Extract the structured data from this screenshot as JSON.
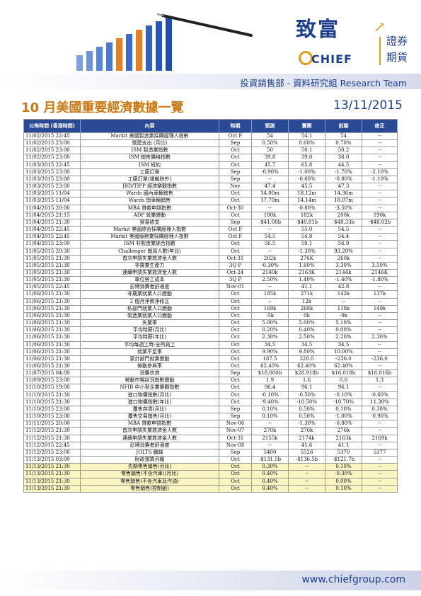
{
  "header": {
    "logo_text": "致富",
    "logo_brand": "CHIEF",
    "logo_line1": "證券",
    "logo_line2": "期貨",
    "department": "投資銷售部 - 資料研究組 Research Team",
    "title": "10 月美國重要經濟數據一覽",
    "date": "13/11/2015"
  },
  "table": {
    "columns": [
      "公佈時間 (香港時間)",
      "內容",
      "時期",
      "預測",
      "實際",
      "前期",
      "修正"
    ],
    "rows": [
      [
        "11/02/2015 22:45",
        "Markit 美國製造業採購經理人指數",
        "Oct F",
        "54",
        "54.1",
        "54",
        "--"
      ],
      [
        "11/02/2015 23:00",
        "營建支出 (月比)",
        "Sep",
        "0.50%",
        "0.60%",
        "0.70%",
        "--"
      ],
      [
        "11/02/2015 23:00",
        "ISM 製造業指數",
        "Oct",
        "50",
        "50.1",
        "50.2",
        "--"
      ],
      [
        "11/02/2015 23:00",
        "ISM 銷售價格指數",
        "Oct",
        "39.8",
        "39.0",
        "38.0",
        "--"
      ],
      [
        "11/03/2015 22:45",
        "ISM 紐約",
        "Oct",
        "45.7",
        "65.8",
        "44.5",
        "--"
      ],
      [
        "11/03/2015 23:00",
        "工廠訂單",
        "Sep",
        "-0.90%",
        "-1.00%",
        "-1.70%",
        "-2.10%"
      ],
      [
        "11/03/2015 23:00",
        "工廠訂單(運輸除外)",
        "Sep",
        "--",
        "-0.60%",
        "-0.80%",
        "-1.10%"
      ],
      [
        "11/03/2015 23:00",
        "IBD/TIPP 經濟樂觀指數",
        "Nov",
        "47.4",
        "45.5",
        "47.3",
        "--"
      ],
      [
        "11/03/2015 11/04",
        "Wards 國內車輛銷售",
        "Oct",
        "14.00m",
        "18.12m",
        "14.36m",
        "--"
      ],
      [
        "11/03/2015 11/04",
        "Wards 總車輛銷售",
        "Oct",
        "17.70m",
        "14.14m",
        "18.07m",
        "--"
      ],
      [
        "11/04/2015 20:00",
        "MBA 貸款申請指數",
        "Oct-30",
        "--",
        "-0.80%",
        "-3.50%",
        "--"
      ],
      [
        "11/04/2015 21:15",
        "ADP 就業變動",
        "Oct",
        "180k",
        "182k",
        "200k",
        "190k"
      ],
      [
        "11/04/2015 21:30",
        "貿易收支",
        "Sep",
        "-$41.00b",
        "-$40.81b",
        "-$48.33b",
        "-$48.02b"
      ],
      [
        "11/04/2015 22:45",
        "Markit 美國綜合採購經理人指數",
        "Oct F",
        "--",
        "55.0",
        "54.5",
        "--"
      ],
      [
        "11/04/2015 22:45",
        "Markit 美國服務業採購經理人指數",
        "Oct F",
        "54.5",
        "54.8",
        "54.4",
        "--"
      ],
      [
        "11/04/2015 23:00",
        "ISM 非製造業綜合指數",
        "Oct",
        "56.5",
        "59.1",
        "56.9",
        "--"
      ],
      [
        "11/05/2015 20:30",
        "Challenger 裁員人數(年比)",
        "Oct",
        "--",
        "-1.30%",
        "93.20%",
        "--"
      ],
      [
        "11/05/2015 21:30",
        "首次申請失業救濟金人數",
        "Oct-31",
        "262k",
        "276K",
        "260k",
        "--"
      ],
      [
        "11/05/2015 21:30",
        "非農業生產力",
        "3Q P",
        "-0.30%",
        "1.60%",
        "3.30%",
        "3.50%"
      ],
      [
        "11/05/2015 21:30",
        "連續申請失業救濟金人數",
        "Oct-24",
        "2140k",
        "2163K",
        "2144k",
        "2146K"
      ],
      [
        "11/05/2015 21:30",
        "單位勞工成本",
        "3Q P",
        "2.50%",
        "1.40%",
        "-1.40%",
        "-1.80%"
      ],
      [
        "11/05/2015 22:45",
        "彭博消費者舒適度",
        "Nov-01",
        "--",
        "41.1",
        "42.8",
        "--"
      ],
      [
        "11/06/2015 21:30",
        "非農業就業人口變動",
        "Oct",
        "185k",
        "271k",
        "142k",
        "137k"
      ],
      [
        "11/06/2015 21:30",
        "2 個月淨資淨修正",
        "Oct",
        "--",
        "12k",
        "--",
        "--"
      ],
      [
        "11/06/2015 21:30",
        "私部門就業人口變動",
        "Oct",
        "169k",
        "268k",
        "118k",
        "149k"
      ],
      [
        "11/06/2015 21:30",
        "製造業就業人口變動",
        "Oct",
        "-5k",
        "0k",
        "-9k",
        "--"
      ],
      [
        "11/06/2015 21:30",
        "失業率",
        "Oct",
        "5.00%",
        "5.00%",
        "5.10%",
        "--"
      ],
      [
        "11/06/2015 21:30",
        "平均時薪(月比)",
        "Oct",
        "0.20%",
        "0.40%",
        "0.00%",
        "--"
      ],
      [
        "11/06/2015 21:30",
        "平均時薪(年比)",
        "Oct",
        "2.30%",
        "2.50%",
        "2.20%",
        "2.30%"
      ],
      [
        "11/06/2015 21:30",
        "平均每週工時-全所員工",
        "Oct",
        "34.5",
        "34.5",
        "34.5",
        "--"
      ],
      [
        "11/06/2015 21:30",
        "就業不足率",
        "Oct",
        "9.90%",
        "9.80%",
        "10.00%",
        "--"
      ],
      [
        "11/06/2015 21:30",
        "家計部門就業變動",
        "Oct",
        "187.5",
        "320.0",
        "-236.0",
        "-236.0"
      ],
      [
        "11/06/2015 21:30",
        "勞動參與率",
        "Oct",
        "62.40%",
        "62.40%",
        "62.40%",
        "--"
      ],
      [
        "11/07/2015 04:00",
        "消費信貸",
        "Sep",
        "$18.000b",
        "$28.918b",
        "$16.018b",
        "$16.016b"
      ],
      [
        "11/09/2015 23:00",
        "勞動市場狀況指數變動",
        "Oct",
        "1.9",
        "1.6",
        "0.0",
        "1.3"
      ],
      [
        "11/10/2015 19:00",
        "NFIB 中小型企業樂觀指數",
        "Oct",
        "96.4",
        "96.1",
        "96.1",
        "--"
      ],
      [
        "11/10/2015 21:30",
        "進口物價指數(月比)",
        "Oct",
        "-0.10%",
        "-0.50%",
        "-0.10%",
        "-0.60%"
      ],
      [
        "11/10/2015 21:30",
        "進口物價指數(年比)",
        "Oct",
        "-9.40%",
        "-10.50%",
        "-10.70%",
        "11.30%"
      ],
      [
        "11/10/2015 23:00",
        "躉售存貨(月比)",
        "Sep",
        "0.10%",
        "0.50%",
        "0.10%",
        "0.30%"
      ],
      [
        "11/10/2015 23:00",
        "躉售交易銷售(月比)",
        "Sep",
        "0.10%",
        "0.50%",
        "-1.00%",
        "-0.90%"
      ],
      [
        "11/11/2015 20:00",
        "MBA 貸款申請指數",
        "Nov-06",
        "--",
        "-1.30%",
        "-0.80%",
        "--"
      ],
      [
        "11/12/2015 21:30",
        "首次申請失業救濟金人數",
        "Nov-07",
        "270k",
        "276k",
        "276k",
        "--"
      ],
      [
        "11/12/2015 21:30",
        "連續申請失業救濟金人數",
        "Oct-31",
        "2155k",
        "2174k",
        "2163k",
        "2169k"
      ],
      [
        "11/12/2015 22:45",
        "彭博消費者舒適度",
        "Nov-08",
        "--",
        "41.6",
        "41.1",
        "--"
      ],
      [
        "11/12/2015 23:00",
        "JOLTS 職缺",
        "Sep",
        "5400",
        "5526",
        "5370",
        "5377"
      ],
      [
        "11/13/2015 03:00",
        "財政預算月報",
        "Oct",
        "-$131.5b",
        "-$136.5b",
        "-$121.7b",
        "--"
      ],
      [
        "11/13/2015 21:30",
        "先期零售銷售(月比)",
        "Oct",
        "0.30%",
        "--",
        "0.10%",
        "--"
      ],
      [
        "11/13/2015 21:30",
        "零售銷售(不含汽車)(月比)",
        "Oct",
        "0.40%",
        "--",
        "-0.30%",
        "--"
      ],
      [
        "11/13/2015 21:30",
        "零售銷售(不含汽車及汽油)",
        "Oct",
        "0.40%",
        "--",
        "0.00%",
        "--"
      ],
      [
        "11/13/2015 21:30",
        "零售銷售(控制組)",
        "Oct",
        "0.40%",
        "--",
        "0.10%",
        "--"
      ]
    ],
    "highlighted_rows": [
      46,
      47,
      48,
      49
    ]
  },
  "footer": {
    "website": "www.chiefgroup.com"
  },
  "colors": {
    "header_blue": "#2a4a96",
    "brand_orange": "#c97a16",
    "highlight_yellow": "#fbf5c4"
  }
}
